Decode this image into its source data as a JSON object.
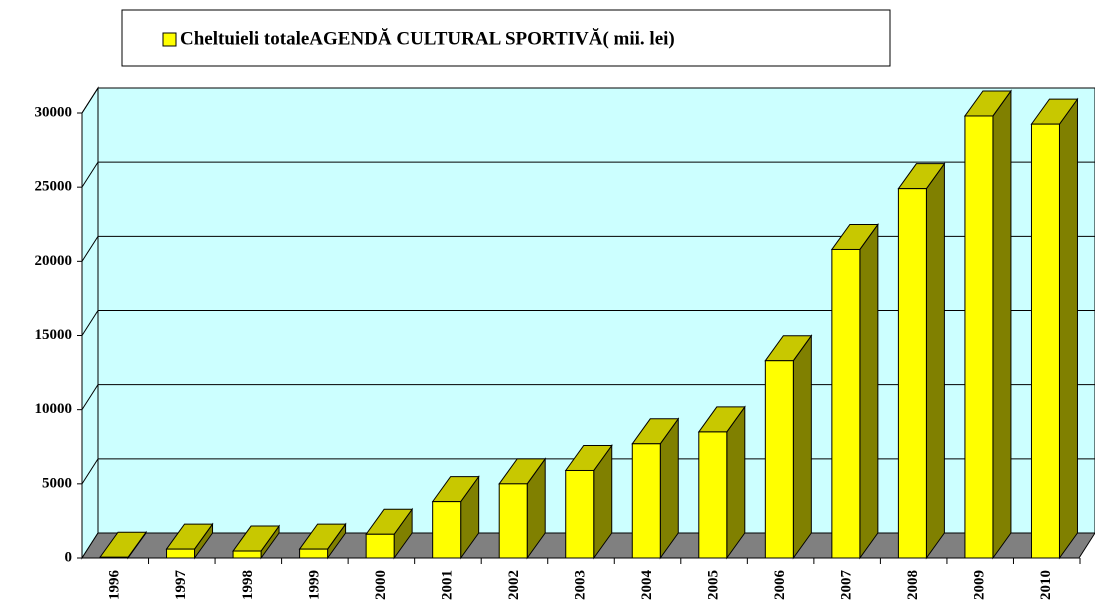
{
  "chart_data": {
    "type": "bar",
    "categories": [
      "1996",
      "1997",
      "1998",
      "1999",
      "2000",
      "2001",
      "2002",
      "2003",
      "2004",
      "2005",
      "2006",
      "2007",
      "2008",
      "2009",
      "2010"
    ],
    "series": [
      {
        "name": "Cheltuieli totaleAGENDĂ CULTURAL SPORTIVĂ( mii. lei)",
        "color": "#ffff00",
        "values": [
          50,
          600,
          470,
          600,
          1600,
          3800,
          5000,
          5900,
          7700,
          8500,
          13300,
          20800,
          24900,
          29800,
          29250
        ]
      }
    ],
    "ylim": [
      0,
      30000
    ],
    "yticks": [
      0,
      5000,
      10000,
      15000,
      20000,
      25000,
      30000
    ],
    "grid": true,
    "legend": "top"
  }
}
